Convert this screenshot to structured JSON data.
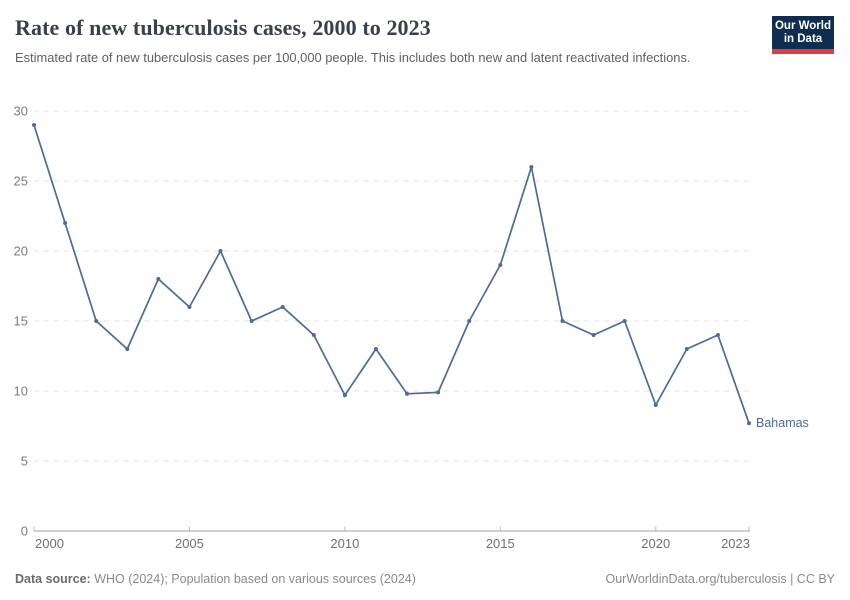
{
  "header": {
    "title": "Rate of new tuberculosis cases, 2000 to 2023",
    "subtitle": "Estimated rate of new tuberculosis cases per 100,000 people. This includes both new and latent reactivated infections.",
    "logo": {
      "line1": "Our World",
      "line2": "in Data"
    }
  },
  "chart_data": {
    "type": "line",
    "title": "Rate of new tuberculosis cases, 2000 to 2023",
    "x": [
      2000,
      2001,
      2002,
      2003,
      2004,
      2005,
      2006,
      2007,
      2008,
      2009,
      2010,
      2011,
      2012,
      2013,
      2014,
      2015,
      2016,
      2017,
      2018,
      2019,
      2020,
      2021,
      2022,
      2023
    ],
    "series": [
      {
        "name": "Bahamas",
        "values": [
          29,
          22,
          15,
          13,
          18,
          16,
          20,
          15,
          16,
          14,
          9.7,
          13,
          9.8,
          9.9,
          15,
          19,
          26,
          15,
          14,
          15,
          9,
          13,
          14,
          7.7
        ]
      }
    ],
    "xlabel": "",
    "ylabel": "",
    "ylim": [
      0,
      30
    ],
    "yticks": [
      0,
      5,
      10,
      15,
      20,
      25,
      30
    ],
    "xticks": [
      2000,
      2005,
      2010,
      2015,
      2020,
      2023
    ],
    "grid": "horizontal-dashed",
    "legend_position": "end-of-line-label",
    "colors": {
      "line": "#4C6A9C",
      "series_label": "#4C6A9C",
      "grid": "#e2e2e2",
      "axis": "#a1a1a1",
      "tick": "#bdbdbd"
    }
  },
  "footer": {
    "source_label": "Data source:",
    "source_text": " WHO (2024); Population based on various sources (2024)",
    "link_text": "OurWorldinData.org/tuberculosis | CC BY"
  }
}
